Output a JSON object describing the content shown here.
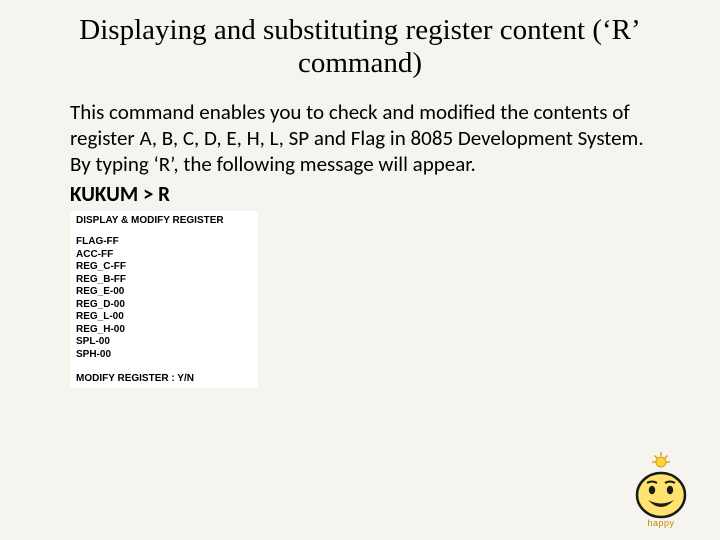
{
  "title": "Displaying and substituting register content (‘R’ command)",
  "body": "This command enables you to check and modified the contents of register A, B, C, D, E, H, L, SP and Flag in 8085 Development System.  By typing ‘R’, the following message will appear.",
  "prompt": "KUKUM > R",
  "register_panel": {
    "header": "DISPLAY & MODIFY REGISTER",
    "lines": [
      "FLAG-FF",
      "ACC-FF",
      "REG_C-FF",
      "REG_B-FF",
      "REG_E-00",
      "REG_D-00",
      "REG_L-00",
      "REG_H-00",
      "SPL-00",
      "SPH-00"
    ],
    "footer": "MODIFY REGISTER : Y/N"
  },
  "smiley": {
    "label": "happy",
    "face_fill": "#ffe36e",
    "face_stroke": "#1a1a1a",
    "sun_fill": "#ffd23f",
    "sun_stroke": "#d9a400"
  },
  "colors": {
    "page_bg": "#f5f4ef",
    "panel_bg": "#ffffff",
    "text": "#000000"
  },
  "fonts": {
    "title_family": "Times New Roman",
    "title_size_pt": 22,
    "body_family": "Calibri",
    "body_size_pt": 16,
    "panel_family": "Arial",
    "panel_size_pt": 8
  }
}
